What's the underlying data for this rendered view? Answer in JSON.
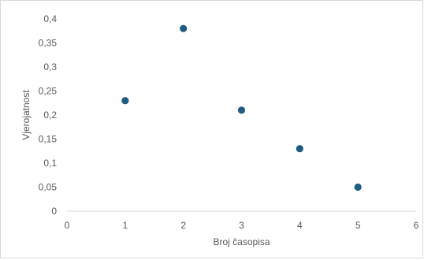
{
  "chart_data": {
    "type": "scatter",
    "title": "",
    "xlabel": "Broj časopisa",
    "ylabel": "Vjerojatnost",
    "xlim": [
      0,
      6
    ],
    "ylim": [
      0,
      0.4
    ],
    "x_ticks": [
      "0",
      "1",
      "2",
      "3",
      "4",
      "5",
      "6"
    ],
    "y_ticks": [
      "0",
      "0,05",
      "0,1",
      "0,15",
      "0,2",
      "0,25",
      "0,3",
      "0,35",
      "0,4"
    ],
    "grid": false,
    "legend": "none",
    "marker_color": "#1f5b82",
    "series": [
      {
        "x": [
          1,
          2,
          3,
          4,
          5
        ],
        "y": [
          0.23,
          0.38,
          0.21,
          0.13,
          0.05
        ]
      }
    ]
  }
}
